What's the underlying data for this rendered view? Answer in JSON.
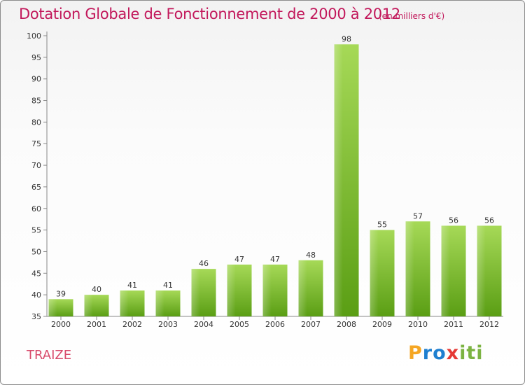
{
  "chart_data": {
    "type": "bar",
    "title": "Dotation Globale de Fonctionnement de 2000 à 2012",
    "subtitle": "(en milliers d'€)",
    "xlabel": "",
    "ylabel": "",
    "categories": [
      "2000",
      "2001",
      "2002",
      "2003",
      "2004",
      "2005",
      "2006",
      "2007",
      "2008",
      "2009",
      "2010",
      "2011",
      "2012"
    ],
    "values": [
      39,
      40,
      41,
      41,
      46,
      47,
      47,
      48,
      98,
      55,
      57,
      56,
      56
    ],
    "ylim": [
      35,
      100
    ],
    "yticks": [
      35,
      40,
      45,
      50,
      55,
      60,
      65,
      70,
      75,
      80,
      85,
      90,
      95,
      100
    ],
    "grid": false,
    "bar_color": "#7cbb2c",
    "title_color": "#c2185b"
  },
  "footer": {
    "commune": "TRAIZE"
  },
  "logo": {
    "text": "Proxiti",
    "parts": [
      "P",
      "ro",
      "x",
      "iti"
    ]
  }
}
